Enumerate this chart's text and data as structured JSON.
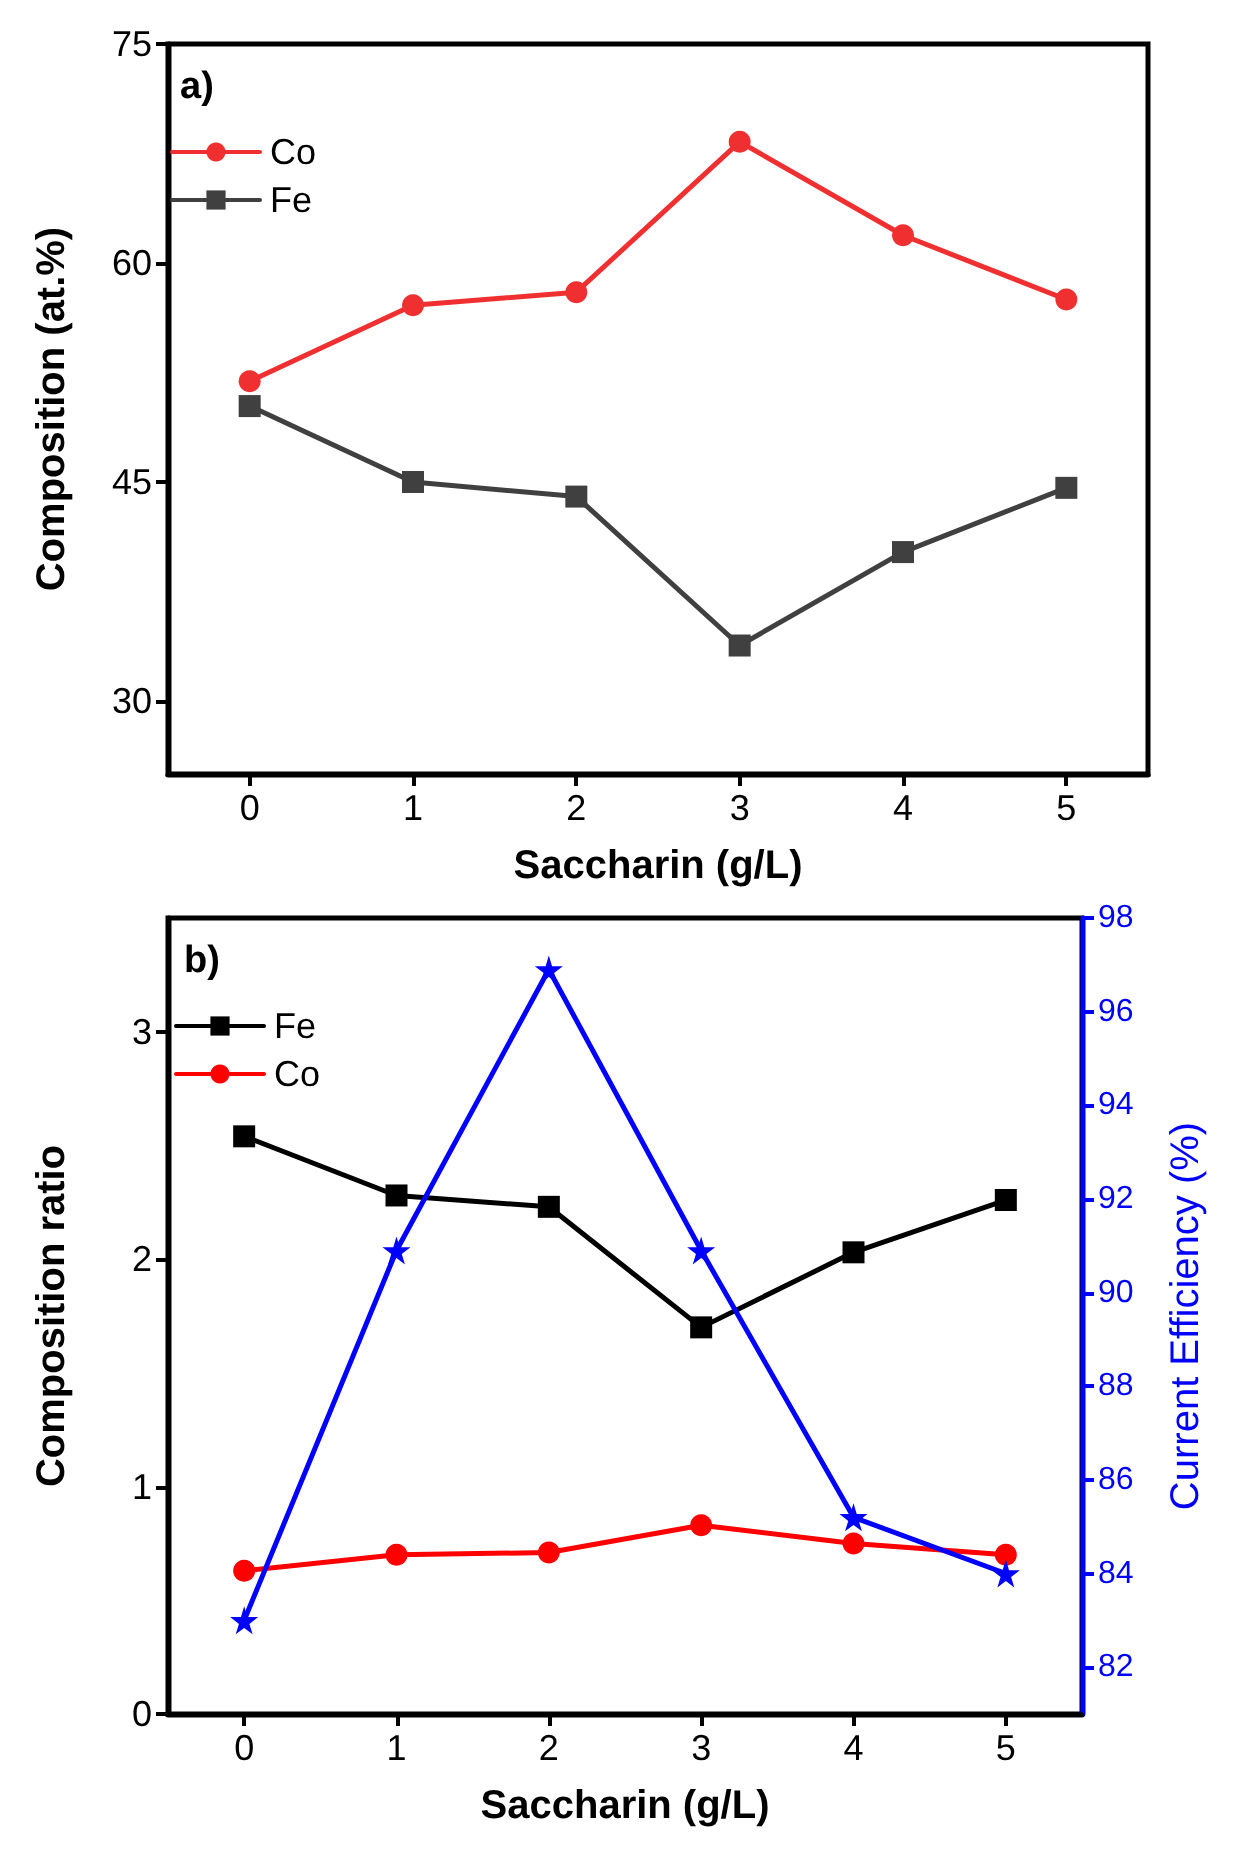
{
  "chart_data": [
    {
      "type": "line",
      "annotations": [
        "a)"
      ],
      "xlabel": "Saccharin (g/L)",
      "ylabel": "Composition (at.%)",
      "x": [
        0,
        1,
        2,
        3,
        4,
        5
      ],
      "xlim": [
        -0.5,
        5.5
      ],
      "xticks": [
        0,
        1,
        2,
        3,
        4,
        5
      ],
      "ylim": [
        25,
        75
      ],
      "yticks": [
        30,
        45,
        60,
        75
      ],
      "legend": "top left",
      "grid": false,
      "series": [
        {
          "name": "Co",
          "color": "#f03030",
          "marker": "circle",
          "values": [
            51.9,
            57.1,
            58.0,
            68.3,
            61.9,
            57.5
          ]
        },
        {
          "name": "Fe",
          "color": "#404040",
          "marker": "square",
          "values": [
            50.2,
            45.0,
            44.0,
            33.8,
            40.2,
            44.6
          ]
        }
      ]
    },
    {
      "type": "line",
      "annotations": [
        "b)"
      ],
      "xlabel": "Saccharin (g/L)",
      "ylabel": "Composition ratio",
      "y2label": "Current Efficiency (%)",
      "x": [
        0,
        1,
        2,
        3,
        4,
        5
      ],
      "xlim": [
        -0.5,
        5.5
      ],
      "xticks": [
        0,
        1,
        2,
        3,
        4,
        5
      ],
      "ylim": [
        0,
        3.5
      ],
      "yticks": [
        0,
        1,
        2,
        3
      ],
      "y2lim": [
        81,
        98
      ],
      "y2ticks": [
        82,
        84,
        86,
        88,
        90,
        92,
        94,
        96,
        98
      ],
      "legend": "top left",
      "grid": false,
      "series": [
        {
          "name": "Fe",
          "color": "#000000",
          "marker": "square",
          "values": [
            2.54,
            2.28,
            2.23,
            1.7,
            2.03,
            2.26
          ]
        },
        {
          "name": "Co",
          "color": "#ff0000",
          "marker": "circle",
          "values": [
            0.63,
            0.7,
            0.71,
            0.83,
            0.75,
            0.7
          ]
        },
        {
          "color": "#0000ff",
          "marker": "star",
          "axis": "y2",
          "values": [
            83.0,
            90.9,
            96.9,
            90.9,
            85.2,
            84.0
          ]
        }
      ]
    }
  ]
}
